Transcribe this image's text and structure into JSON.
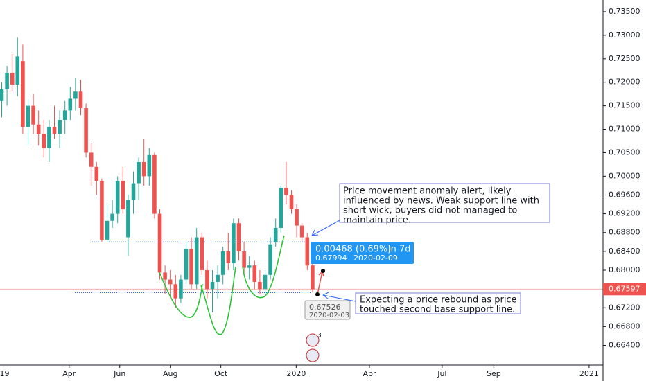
{
  "chart_data": {
    "type": "candlestick",
    "open": [
      0.716,
      0.7185,
      0.722,
      0.7195,
      0.7245,
      0.7105,
      0.715,
      0.711,
      0.709,
      0.706,
      0.7105,
      0.709,
      0.712,
      0.714,
      0.7165,
      0.718,
      0.7145,
      0.705,
      0.702,
      0.699,
      0.6865,
      0.6905,
      0.692,
      0.699,
      0.687,
      0.695,
      0.6985,
      0.703,
      0.7,
      0.7045,
      0.692,
      0.6795,
      0.678,
      0.677,
      0.674,
      0.678,
      0.6845,
      0.677,
      0.687,
      0.68,
      0.676,
      0.6775,
      0.679,
      0.684,
      0.6815,
      0.69,
      0.684,
      0.6805,
      0.681,
      0.6775,
      0.676,
      0.679,
      0.686,
      0.689,
      0.6975,
      0.696,
      0.693,
      0.6895,
      0.687,
      0.681
    ],
    "high": [
      0.72,
      0.7235,
      0.726,
      0.7295,
      0.728,
      0.7165,
      0.7175,
      0.714,
      0.712,
      0.712,
      0.715,
      0.714,
      0.716,
      0.719,
      0.721,
      0.7205,
      0.7155,
      0.707,
      0.703,
      0.6995,
      0.694,
      0.695,
      0.7,
      0.702,
      0.696,
      0.701,
      0.704,
      0.708,
      0.706,
      0.705,
      0.693,
      0.681,
      0.68,
      0.679,
      0.679,
      0.686,
      0.687,
      0.689,
      0.688,
      0.682,
      0.68,
      0.681,
      0.685,
      0.688,
      0.691,
      0.691,
      0.686,
      0.683,
      0.682,
      0.68,
      0.68,
      0.687,
      0.691,
      0.698,
      0.703,
      0.697,
      0.694,
      0.69,
      0.688,
      0.6815
    ],
    "low": [
      0.7125,
      0.715,
      0.718,
      0.717,
      0.709,
      0.7065,
      0.709,
      0.7065,
      0.704,
      0.703,
      0.708,
      0.706,
      0.709,
      0.712,
      0.714,
      0.713,
      0.704,
      0.698,
      0.696,
      0.686,
      0.686,
      0.689,
      0.69,
      0.692,
      0.683,
      0.692,
      0.695,
      0.698,
      0.698,
      0.691,
      0.678,
      0.675,
      0.674,
      0.672,
      0.673,
      0.677,
      0.676,
      0.676,
      0.679,
      0.674,
      0.671,
      0.674,
      0.677,
      0.68,
      0.68,
      0.682,
      0.679,
      0.678,
      0.676,
      0.675,
      0.675,
      0.678,
      0.685,
      0.688,
      0.694,
      0.692,
      0.687,
      0.686,
      0.68,
      0.67526
    ],
    "close": [
      0.7185,
      0.722,
      0.7195,
      0.7255,
      0.7105,
      0.715,
      0.711,
      0.709,
      0.706,
      0.7105,
      0.709,
      0.712,
      0.714,
      0.7165,
      0.718,
      0.7145,
      0.705,
      0.702,
      0.699,
      0.6865,
      0.6905,
      0.692,
      0.699,
      0.693,
      0.695,
      0.6985,
      0.703,
      0.7,
      0.7045,
      0.692,
      0.6795,
      0.678,
      0.677,
      0.674,
      0.678,
      0.6845,
      0.677,
      0.687,
      0.68,
      0.676,
      0.6775,
      0.679,
      0.684,
      0.6815,
      0.69,
      0.684,
      0.6805,
      0.681,
      0.6775,
      0.676,
      0.679,
      0.6855,
      0.689,
      0.6975,
      0.696,
      0.693,
      0.6895,
      0.687,
      0.681,
      0.67597
    ],
    "up_color": "#26a69a",
    "down_color": "#ef5350",
    "ylim": [
      0.6598,
      0.7375
    ],
    "yticks": [
      {
        "value": 0.735,
        "label": "0.73500"
      },
      {
        "value": 0.73,
        "label": "0.73000"
      },
      {
        "value": 0.725,
        "label": "0.72500"
      },
      {
        "value": 0.72,
        "label": "0.72000"
      },
      {
        "value": 0.715,
        "label": "0.71500"
      },
      {
        "value": 0.71,
        "label": "0.71000"
      },
      {
        "value": 0.705,
        "label": "0.70500"
      },
      {
        "value": 0.7,
        "label": "0.70000"
      },
      {
        "value": 0.696,
        "label": "0.69600"
      },
      {
        "value": 0.692,
        "label": "0.69200"
      },
      {
        "value": 0.688,
        "label": "0.68800"
      },
      {
        "value": 0.684,
        "label": "0.68400"
      },
      {
        "value": 0.68,
        "label": "0.68000"
      },
      {
        "value": 0.672,
        "label": "0.67200"
      },
      {
        "value": 0.668,
        "label": "0.66800"
      },
      {
        "value": 0.664,
        "label": "0.66400"
      }
    ],
    "xticks": [
      {
        "value": -0.4,
        "label": "2019"
      },
      {
        "value": 12.8,
        "label": "Apr"
      },
      {
        "value": 22.4,
        "label": "Jun"
      },
      {
        "value": 32,
        "label": "Aug"
      },
      {
        "value": 41.6,
        "label": "Oct"
      },
      {
        "value": 55.9,
        "label": "2020"
      },
      {
        "value": 69.8,
        "label": "Apr"
      },
      {
        "value": 83.6,
        "label": "Jul"
      },
      {
        "value": 93.4,
        "label": "Sep"
      },
      {
        "value": 111.5,
        "label": "2021"
      }
    ],
    "last_price": 0.67597,
    "support_levels": [
      0.686,
      0.6752
    ],
    "annotations": [
      {
        "lines": [
          "Price movement anomaly alert, likely",
          "influenced by news. Weak support line with",
          "short wick, buyers did not managed to",
          "maintain price."
        ]
      },
      {
        "lines": [
          "Expecting a price rebound as price",
          "touched second base support line."
        ]
      }
    ],
    "measure": {
      "change": "0.00468 (0.69%)",
      "span": "in 7d",
      "price": "0.67994",
      "date": "2020-02-09"
    },
    "start": {
      "price": "0.67526",
      "date": "2020-02-03"
    },
    "badge": "3"
  }
}
